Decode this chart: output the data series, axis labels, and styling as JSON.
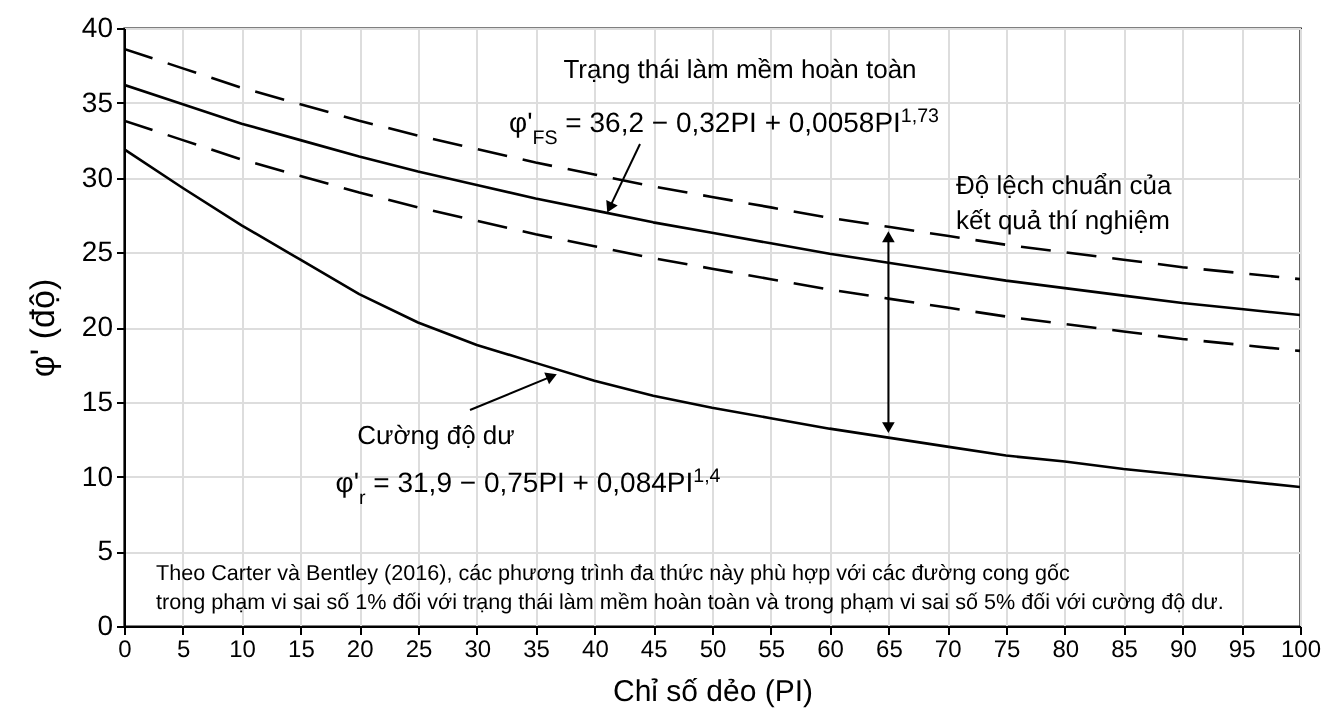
{
  "chart_data": {
    "type": "line",
    "xlabel": "Chỉ số dẻo (PI)",
    "ylabel": "φ' (độ)",
    "x": [
      0,
      5,
      10,
      15,
      20,
      25,
      30,
      35,
      40,
      45,
      50,
      55,
      60,
      65,
      70,
      75,
      80,
      85,
      90,
      95,
      100
    ],
    "series": [
      {
        "color": "#000000",
        "line_style": "dashed",
        "values": [
          38.6,
          37.3,
          36.0,
          34.9,
          33.8,
          32.8,
          31.9,
          31.0,
          30.2,
          29.4,
          28.7,
          28.0,
          27.3,
          26.7,
          26.1,
          25.5,
          25.0,
          24.5,
          24.0,
          23.6,
          23.2
        ]
      },
      {
        "color": "#000000",
        "line_style": "solid",
        "values": [
          36.2,
          34.9,
          33.6,
          32.5,
          31.4,
          30.4,
          29.5,
          28.6,
          27.8,
          27.0,
          26.3,
          25.6,
          24.9,
          24.3,
          23.7,
          23.1,
          22.6,
          22.1,
          21.6,
          21.2,
          20.8
        ]
      },
      {
        "color": "#000000",
        "line_style": "dashed",
        "values": [
          33.8,
          32.5,
          31.2,
          30.1,
          29.0,
          28.0,
          27.1,
          26.2,
          25.4,
          24.6,
          23.9,
          23.2,
          22.5,
          21.9,
          21.3,
          20.7,
          20.2,
          19.7,
          19.2,
          18.8,
          18.4
        ]
      },
      {
        "color": "#000000",
        "line_style": "solid",
        "values": [
          31.9,
          29.3,
          26.8,
          24.5,
          22.2,
          20.3,
          18.8,
          17.6,
          16.4,
          15.4,
          14.6,
          13.9,
          13.2,
          12.6,
          12.0,
          11.4,
          11.0,
          10.5,
          10.1,
          9.7,
          9.3
        ]
      }
    ],
    "xlim": [
      0,
      100
    ],
    "xticks": [
      0,
      5,
      10,
      15,
      20,
      25,
      30,
      35,
      40,
      45,
      50,
      55,
      60,
      65,
      70,
      75,
      80,
      85,
      90,
      95,
      100
    ],
    "ylim": [
      0,
      40
    ],
    "yticks": [
      0,
      5,
      10,
      15,
      20,
      25,
      30,
      35,
      40
    ],
    "grid": true,
    "annotations": [
      "Trạng thái làm mềm hoàn toàn",
      {
        "text": "φ'$_{FS}$ = 36,2 − 0,32PI + 0,0058PI$^{1,73}$",
        "x": 41,
        "y": 27.5
      },
      {
        "text": "Độ lệch chuẩn của\nkết quả thí nghiệm",
        "x": 65,
        "y": 24.3
      },
      {
        "text": "Cường độ dư",
        "x": 37,
        "y": 16.9
      },
      "φ'$_{r}$ = 31,9 − 0,75PI + 0,084PI$^{1,4}$",
      "Theo Carter và Bentley (2016), các phương trình đa thức này phù hợp với các đường cong gốc\ntrong phạm vi sai số 1% đối với trạng thái làm mềm hoàn toàn và trong phạm vi sai số 5% đối với cường độ dư."
    ]
  }
}
